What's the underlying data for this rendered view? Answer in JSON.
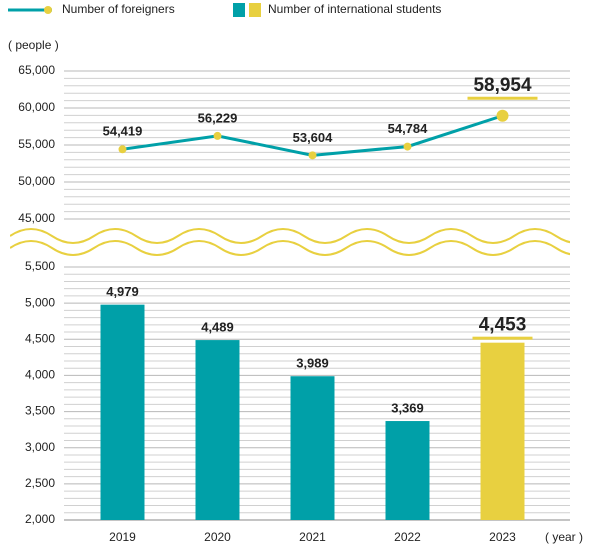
{
  "chart_data": {
    "type": "combo",
    "categories": [
      "2019",
      "2020",
      "2021",
      "2022",
      "2023"
    ],
    "y_label": "( people )",
    "x_label": "( year )",
    "series": [
      {
        "name": "Number of foreigners",
        "type": "line",
        "axis": "y2",
        "color": "#00a0a8",
        "marker_color": "#e8d040",
        "values": [
          54419,
          56229,
          53604,
          54784,
          58954
        ],
        "value_labels": [
          "54,419",
          "56,229",
          "53,604",
          "54,784",
          "58,954"
        ]
      },
      {
        "name": "Number of international students",
        "type": "bar",
        "colors": [
          "#00a0a8",
          "#00a0a8",
          "#00a0a8",
          "#00a0a8",
          "#e8d040"
        ],
        "values": [
          4979,
          4489,
          3989,
          3369,
          4453
        ],
        "value_labels": [
          "4,979",
          "4,489",
          "3,989",
          "3,369",
          "4,453"
        ]
      }
    ],
    "ylim": [
      2000,
      5500
    ],
    "yticks": [
      {
        "value": 2000,
        "label": "2,000"
      },
      {
        "value": 2500,
        "label": "2,500"
      },
      {
        "value": 3000,
        "label": "3,000"
      },
      {
        "value": 3500,
        "label": "3,500"
      },
      {
        "value": 4000,
        "label": "4,000"
      },
      {
        "value": 4500,
        "label": "4,500"
      },
      {
        "value": 5000,
        "label": "5,000"
      },
      {
        "value": 5500,
        "label": "5,500"
      }
    ],
    "y2lim": [
      45000,
      65000
    ],
    "y2ticks": [
      {
        "value": 45000,
        "label": "45,000"
      },
      {
        "value": 50000,
        "label": "50,000"
      },
      {
        "value": 55000,
        "label": "55,000"
      },
      {
        "value": 60000,
        "label": "60,000"
      },
      {
        "value": 65000,
        "label": "65,000"
      }
    ],
    "grid": true,
    "minor_grid": true,
    "legend": "top-left"
  }
}
